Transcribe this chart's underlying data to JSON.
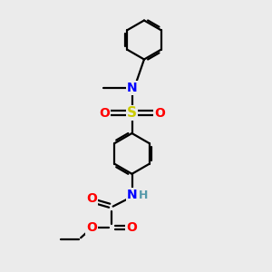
{
  "background_color": "#ebebeb",
  "bond_color": "#000000",
  "bond_width": 1.6,
  "atom_colors": {
    "N": "#0000ff",
    "O": "#ff0000",
    "S": "#cccc00",
    "H": "#5599aa",
    "C": "#000000"
  },
  "figsize": [
    3.0,
    3.0
  ],
  "dpi": 100
}
